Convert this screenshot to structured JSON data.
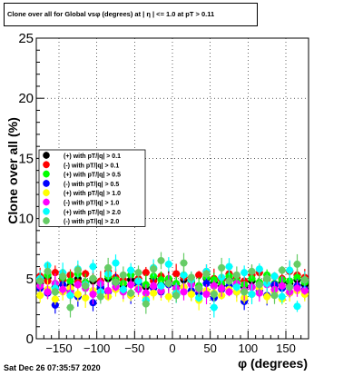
{
  "title": "Clone  over all for Global vsφ (degrees) at | η | <= 1.0 at pT > 0.11",
  "footer": "Sat Dec 26 07:35:57 2020",
  "colors": {
    "black": "#000000",
    "red": "#ff0000",
    "green": "#00ff00",
    "blue": "#0000ff",
    "yellow": "#ffff00",
    "magenta": "#ff00ff",
    "cyan": "#00ffff",
    "lightgreen": "#66cc66"
  },
  "chart_data": {
    "type": "scatter",
    "title": "Clone  over all for Global vsφ (degrees) at | η | <= 1.0 at pT > 0.11",
    "xlabel": "φ (degrees)",
    "ylabel": "Clone  over all (%)",
    "xlim": [
      -180,
      180
    ],
    "ylim": [
      0,
      25
    ],
    "xticks": [
      -150,
      -100,
      -50,
      0,
      50,
      100,
      150
    ],
    "yticks": [
      0,
      5,
      10,
      15,
      20,
      25
    ],
    "xtick_labels": [
      "−150",
      "−100",
      "−50",
      "0",
      "50",
      "100",
      "150"
    ],
    "ytick_labels": [
      "0",
      "5",
      "10",
      "15",
      "20",
      "25"
    ],
    "grid": true,
    "legend_position": "left-middle",
    "x": [
      -175,
      -165,
      -155,
      -145,
      -135,
      -125,
      -115,
      -105,
      -95,
      -85,
      -75,
      -65,
      -55,
      -45,
      -35,
      -25,
      -15,
      -5,
      5,
      15,
      25,
      35,
      45,
      55,
      65,
      75,
      85,
      95,
      105,
      115,
      125,
      135,
      145,
      155,
      165,
      175
    ],
    "series": [
      {
        "name": "(+) with pT/|q| > 0.1",
        "color": "#000000",
        "marker": "circle",
        "values": [
          4.6,
          5.1,
          4.3,
          4.9,
          4.4,
          5.0,
          4.5,
          4.8,
          4.2,
          5.0,
          4.7,
          4.4,
          4.9,
          4.6,
          4.3,
          5.0,
          4.5,
          4.8,
          4.4,
          4.9,
          4.6,
          4.2,
          5.0,
          4.7,
          4.4,
          4.9,
          4.6,
          4.3,
          4.8,
          4.5,
          5.0,
          4.4,
          4.7,
          4.6,
          4.9,
          4.5
        ]
      },
      {
        "name": "(-) with pT/|q| > 0.1",
        "color": "#ff0000",
        "marker": "circle",
        "values": [
          5.2,
          4.8,
          5.5,
          4.9,
          5.3,
          4.7,
          5.4,
          5.0,
          4.8,
          5.6,
          5.1,
          4.9,
          5.3,
          5.0,
          5.5,
          4.8,
          5.2,
          4.9,
          5.4,
          5.1,
          4.7,
          5.3,
          5.6,
          5.0,
          4.9,
          5.4,
          5.1,
          4.8,
          5.3,
          5.5,
          4.9,
          5.2,
          5.0,
          5.6,
          5.3,
          5.1
        ]
      },
      {
        "name": "(+) with pT/|q| > 0.5",
        "color": "#00ff00",
        "marker": "circle",
        "values": [
          4.9,
          5.3,
          4.6,
          5.1,
          4.8,
          5.4,
          4.7,
          5.0,
          4.5,
          5.2,
          4.9,
          4.6,
          5.3,
          4.8,
          4.5,
          5.2,
          4.9,
          5.0,
          4.6,
          5.3,
          4.8,
          4.4,
          5.1,
          4.9,
          4.6,
          5.2,
          4.8,
          4.5,
          5.0,
          4.7,
          5.3,
          4.6,
          4.9,
          4.8,
          5.1,
          4.7
        ]
      },
      {
        "name": "(-) with pT/|q| > 0.5",
        "color": "#0000ff",
        "marker": "circle",
        "values": [
          4.2,
          3.8,
          2.8,
          4.5,
          4.0,
          3.5,
          4.4,
          3.0,
          4.3,
          3.9,
          4.6,
          4.1,
          3.6,
          4.4,
          3.2,
          4.2,
          3.9,
          4.5,
          3.7,
          4.3,
          4.0,
          3.8,
          4.6,
          3.4,
          4.1,
          4.4,
          3.9,
          3.1,
          4.3,
          4.0,
          3.6,
          4.5,
          4.2,
          3.8,
          4.4,
          4.1
        ]
      },
      {
        "name": "(+) with pT/|q| > 1.0",
        "color": "#ffff00",
        "marker": "circle",
        "values": [
          3.6,
          4.1,
          3.3,
          3.9,
          4.2,
          3.7,
          3.4,
          4.0,
          3.8,
          3.5,
          4.1,
          3.9,
          3.6,
          4.2,
          3.4,
          3.8,
          4.0,
          3.5,
          3.9,
          4.3,
          3.7,
          3.2,
          4.0,
          3.8,
          3.6,
          4.1,
          3.9,
          3.4,
          3.7,
          4.2,
          3.5,
          3.9,
          3.3,
          3.8,
          4.0,
          3.7
        ]
      },
      {
        "name": "(-) with pT/|q| > 1.0",
        "color": "#ff00ff",
        "marker": "circle",
        "values": [
          4.4,
          3.9,
          4.6,
          4.1,
          3.8,
          4.5,
          4.2,
          3.7,
          4.6,
          4.0,
          4.3,
          3.9,
          4.5,
          4.1,
          3.8,
          4.4,
          4.0,
          4.6,
          4.2,
          3.9,
          4.5,
          4.1,
          3.7,
          4.4,
          4.2,
          3.9,
          4.6,
          4.0,
          4.3,
          3.8,
          4.5,
          4.1,
          4.4,
          3.9,
          4.2,
          4.0
        ]
      },
      {
        "name": "(+) with pT/|q| > 2.0",
        "color": "#00ffff",
        "marker": "circle",
        "values": [
          5.0,
          6.1,
          4.2,
          5.5,
          3.6,
          5.8,
          4.5,
          6.0,
          3.9,
          5.4,
          6.3,
          4.1,
          5.7,
          4.8,
          3.2,
          5.9,
          4.4,
          6.2,
          3.8,
          5.3,
          4.9,
          3.4,
          5.6,
          2.6,
          5.1,
          6.0,
          4.3,
          5.5,
          3.7,
          5.8,
          4.6,
          5.2,
          3.5,
          5.7,
          2.7,
          4.9
        ]
      },
      {
        "name": "(-) with pT/|q| > 2.0",
        "color": "#66cc66",
        "marker": "circle",
        "values": [
          4.8,
          5.6,
          3.9,
          5.2,
          2.6,
          5.7,
          4.4,
          5.0,
          3.5,
          5.9,
          4.7,
          5.3,
          3.8,
          5.5,
          2.9,
          5.8,
          6.5,
          4.6,
          3.6,
          6.3,
          5.1,
          4.2,
          5.4,
          3.7,
          5.9,
          4.8,
          5.3,
          3.9,
          5.6,
          4.5,
          5.0,
          3.6,
          5.7,
          4.3,
          6.2,
          4.9
        ]
      }
    ]
  }
}
